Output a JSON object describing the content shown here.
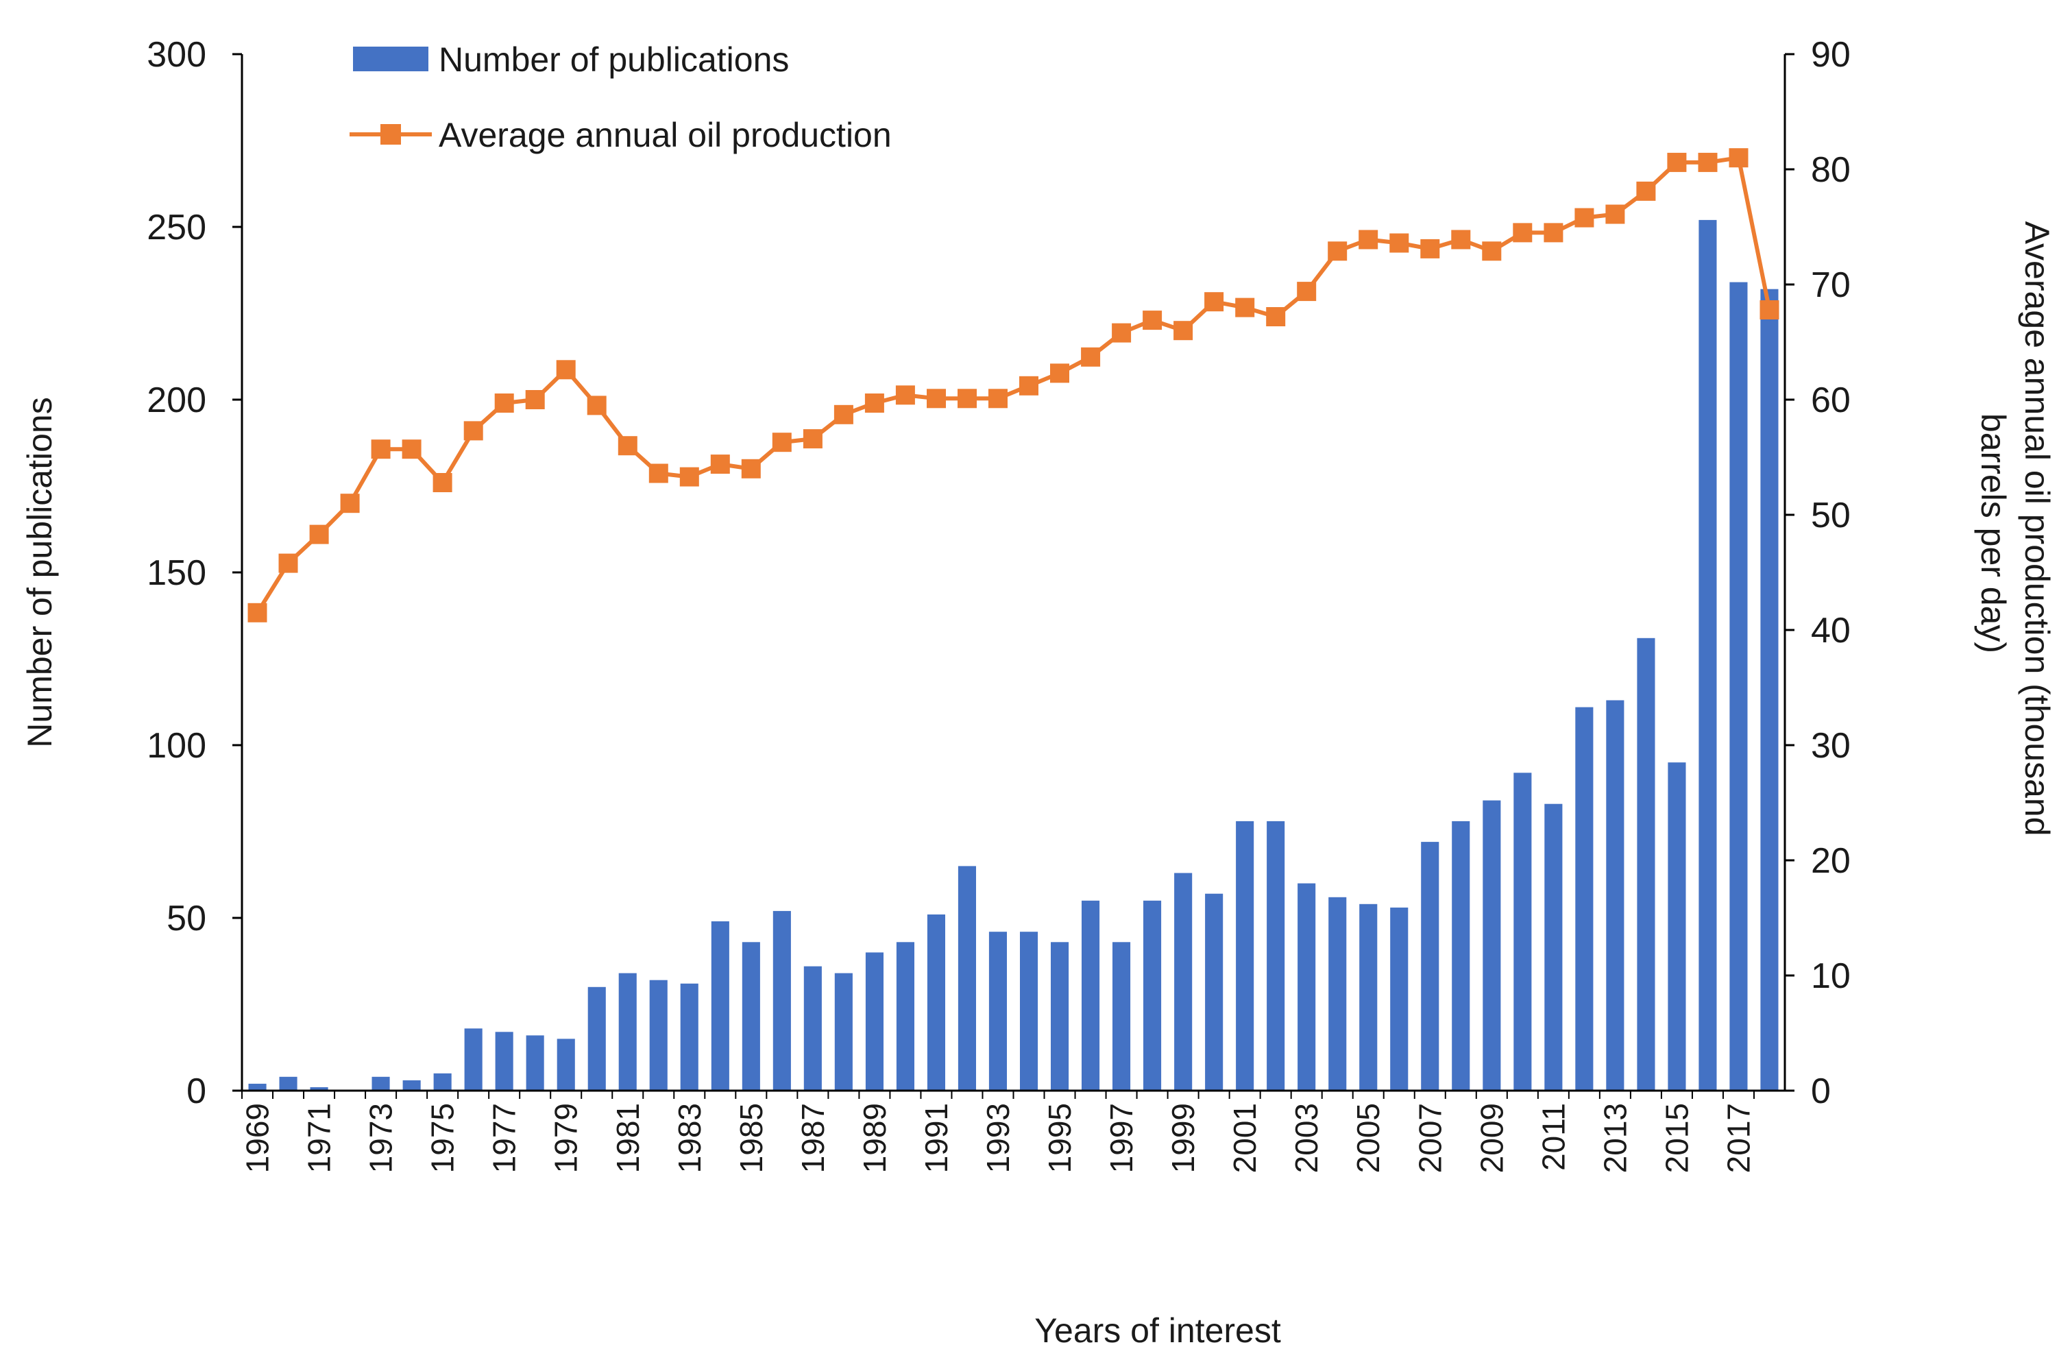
{
  "chart_data": {
    "type": "bar+line",
    "title": "",
    "xlabel": "Years of interest",
    "ylabel_left": "Number of publications",
    "ylabel_right": "Average annual oil production (thousand barrels per day)",
    "ylim_left": [
      0,
      300
    ],
    "ylim_right": [
      0,
      90
    ],
    "yticks_left": [
      0,
      50,
      100,
      150,
      200,
      250,
      300
    ],
    "yticks_right": [
      0,
      10,
      20,
      30,
      40,
      50,
      60,
      70,
      80,
      90
    ],
    "grid": false,
    "legend_position": "top-left",
    "categories": [
      1969,
      1970,
      1971,
      1972,
      1973,
      1974,
      1975,
      1976,
      1977,
      1978,
      1979,
      1980,
      1981,
      1982,
      1983,
      1984,
      1985,
      1986,
      1987,
      1988,
      1989,
      1990,
      1991,
      1992,
      1993,
      1994,
      1995,
      1996,
      1997,
      1998,
      1999,
      2000,
      2001,
      2002,
      2003,
      2004,
      2005,
      2006,
      2007,
      2008,
      2009,
      2010,
      2011,
      2012,
      2013,
      2014,
      2015,
      2016,
      2017,
      2018
    ],
    "xtick_labels": [
      "1969",
      "1971",
      "1973",
      "1975",
      "1977",
      "1979",
      "1981",
      "1983",
      "1985",
      "1987",
      "1989",
      "1991",
      "1993",
      "1995",
      "1997",
      "1999",
      "2001",
      "2003",
      "2005",
      "2007",
      "2009",
      "2011",
      "2013",
      "2015",
      "2017"
    ],
    "series": [
      {
        "name": "Number of publications",
        "type": "bar",
        "axis": "left",
        "color": "#4472C4",
        "values": [
          2,
          4,
          1,
          0,
          4,
          3,
          5,
          18,
          17,
          16,
          15,
          30,
          34,
          32,
          31,
          49,
          43,
          52,
          36,
          34,
          40,
          43,
          51,
          65,
          46,
          46,
          43,
          55,
          43,
          55,
          63,
          57,
          78,
          78,
          60,
          56,
          54,
          53,
          72,
          78,
          84,
          92,
          83,
          111,
          113,
          131,
          95,
          252,
          234,
          232
        ]
      },
      {
        "name": "Average annual oil production",
        "type": "line",
        "axis": "right",
        "color": "#ED7D31",
        "marker": "square",
        "values": [
          41.5,
          45.8,
          48.3,
          51.0,
          55.7,
          55.7,
          52.8,
          57.3,
          59.7,
          60.0,
          62.6,
          59.5,
          56.0,
          53.6,
          53.3,
          54.4,
          54.0,
          56.3,
          56.6,
          58.7,
          59.7,
          60.4,
          60.1,
          60.1,
          60.1,
          61.2,
          62.3,
          63.7,
          65.8,
          66.9,
          66.0,
          68.5,
          68.0,
          67.2,
          69.4,
          72.9,
          73.9,
          73.6,
          73.1,
          73.9,
          72.9,
          74.5,
          74.5,
          75.8,
          76.1,
          78.1,
          80.6,
          80.6,
          81.0,
          67.8
        ]
      }
    ]
  }
}
